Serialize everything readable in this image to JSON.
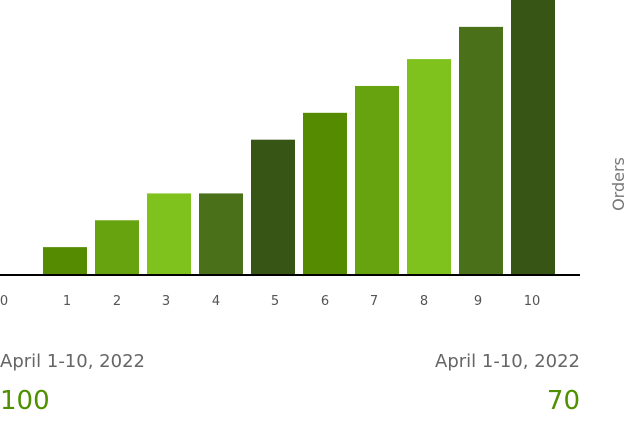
{
  "chart_data": {
    "type": "bar",
    "categories": [
      "1",
      "2",
      "3",
      "4",
      "5",
      "6",
      "7",
      "8",
      "9",
      "10"
    ],
    "values": [
      10,
      20,
      30,
      30,
      50,
      60,
      70,
      80,
      92,
      102
    ],
    "x_ticks": [
      "0",
      "1",
      "2",
      "3",
      "4",
      "5",
      "6",
      "7",
      "8",
      "9",
      "10"
    ],
    "ylabel": "Orders",
    "ylim": [
      0,
      102
    ],
    "grid": false,
    "bar_colors": [
      "#548b00",
      "#66a30f",
      "#7fc21d",
      "#4a711a",
      "#375515",
      "#548b00",
      "#66a30f",
      "#7fc21d",
      "#4a711a",
      "#375515"
    ]
  },
  "summary": {
    "left": {
      "label": "April 1-10, 2022",
      "value": "100"
    },
    "right": {
      "label": "April 1-10, 2022",
      "value": "70"
    }
  }
}
